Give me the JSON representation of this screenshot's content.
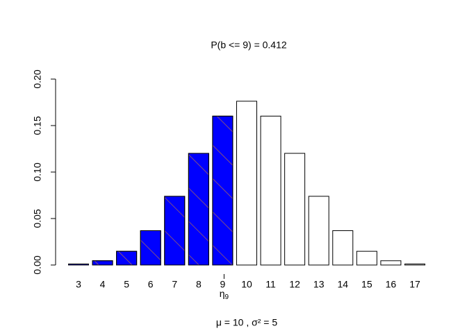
{
  "chart_data": {
    "type": "bar",
    "title": "P(b  <=  9) =  0.412",
    "subtitle": "μ = 10 ,  σ² = 5",
    "annotation": {
      "symbol": "η",
      "subscript": "9",
      "at": 9
    },
    "categories": [
      "3",
      "4",
      "5",
      "6",
      "7",
      "8",
      "9",
      "10",
      "11",
      "12",
      "13",
      "14",
      "15",
      "16",
      "17"
    ],
    "values": [
      0.00109,
      0.00462,
      0.01479,
      0.03696,
      0.07393,
      0.12013,
      0.16018,
      0.1762,
      0.16018,
      0.12013,
      0.07393,
      0.03696,
      0.01479,
      0.00462,
      0.00109
    ],
    "colors": [
      "#0000ff",
      "#0000ff",
      "#0000ff",
      "#0000ff",
      "#0000ff",
      "#0000ff",
      "#0000ff",
      "#ffffff",
      "#ffffff",
      "#ffffff",
      "#ffffff",
      "#ffffff",
      "#ffffff",
      "#ffffff",
      "#ffffff"
    ],
    "ylim": [
      0,
      0.2
    ],
    "yticks": [
      {
        "value": 0,
        "label": "0.00"
      },
      {
        "value": 0.05,
        "label": "0.05"
      },
      {
        "value": 0.1,
        "label": "0.10"
      },
      {
        "value": 0.15,
        "label": "0.15"
      },
      {
        "value": 0.2,
        "label": "0.20"
      }
    ],
    "grid": false
  }
}
